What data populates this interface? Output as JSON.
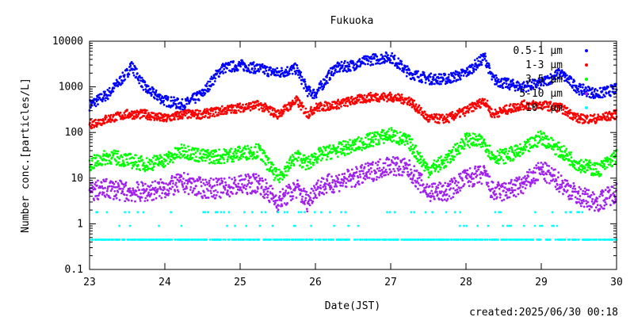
{
  "chart_data": {
    "type": "scatter",
    "title": "Fukuoka",
    "xlabel": "Date(JST)",
    "ylabel": "Number conc.[particles/L]",
    "x_tick_labels": [
      "23",
      "24",
      "25",
      "26",
      "27",
      "28",
      "29",
      "30"
    ],
    "xlim": [
      23,
      30
    ],
    "y_scale": "log",
    "ylim": [
      0.1,
      10000
    ],
    "y_tick_labels": [
      "0.1",
      "1",
      "10",
      "100",
      "1000",
      "10000"
    ],
    "grid": false,
    "legend_position": "top-right",
    "footer": "created:2025/06/30 00:18",
    "series": [
      {
        "name": "0.5-1 μm",
        "color": "#0000ff",
        "x": [
          23.0,
          23.25,
          23.5,
          23.55,
          23.75,
          24.0,
          24.25,
          24.5,
          24.75,
          25.0,
          25.25,
          25.5,
          25.75,
          25.9,
          26.0,
          26.25,
          26.5,
          26.75,
          27.0,
          27.25,
          27.5,
          27.75,
          28.0,
          28.25,
          28.35,
          28.5,
          28.75,
          29.0,
          29.25,
          29.5,
          29.75,
          30.0
        ],
        "y": [
          400,
          700,
          2000,
          3000,
          900,
          500,
          400,
          700,
          2500,
          3000,
          2500,
          2000,
          2500,
          800,
          700,
          2500,
          3000,
          4000,
          4500,
          2000,
          1500,
          1500,
          2000,
          4500,
          1500,
          1200,
          1000,
          1200,
          2000,
          900,
          700,
          900
        ]
      },
      {
        "name": "1-3 μm",
        "color": "#ff0000",
        "x": [
          23.0,
          23.25,
          23.5,
          23.75,
          24.0,
          24.25,
          24.5,
          24.75,
          25.0,
          25.25,
          25.5,
          25.75,
          25.9,
          26.0,
          26.25,
          26.5,
          26.75,
          27.0,
          27.25,
          27.5,
          27.75,
          28.0,
          28.25,
          28.35,
          28.5,
          28.75,
          29.0,
          29.25,
          29.5,
          29.75,
          30.0
        ],
        "y": [
          150,
          200,
          250,
          250,
          200,
          250,
          250,
          300,
          350,
          400,
          250,
          500,
          250,
          350,
          400,
          500,
          600,
          600,
          500,
          200,
          200,
          300,
          500,
          250,
          300,
          400,
          400,
          350,
          200,
          200,
          250
        ]
      },
      {
        "name": "3-5 μm",
        "color": "#00ff00",
        "x": [
          23.0,
          23.25,
          23.5,
          23.75,
          24.0,
          24.25,
          24.5,
          24.75,
          25.0,
          25.25,
          25.5,
          25.75,
          25.9,
          26.0,
          26.25,
          26.5,
          26.75,
          27.0,
          27.25,
          27.5,
          27.75,
          28.0,
          28.25,
          28.35,
          28.5,
          28.75,
          29.0,
          29.25,
          29.5,
          29.75,
          30.0
        ],
        "y": [
          20,
          30,
          25,
          20,
          25,
          40,
          30,
          30,
          35,
          40,
          10,
          30,
          20,
          30,
          40,
          50,
          70,
          90,
          60,
          15,
          25,
          70,
          60,
          30,
          30,
          40,
          80,
          40,
          20,
          15,
          30
        ]
      },
      {
        "name": "5-10 μm",
        "color": "#a020f0",
        "x": [
          23.0,
          23.25,
          23.5,
          23.75,
          24.0,
          24.25,
          24.5,
          24.75,
          25.0,
          25.25,
          25.5,
          25.75,
          25.9,
          26.0,
          26.25,
          26.5,
          26.75,
          27.0,
          27.25,
          27.5,
          27.75,
          28.0,
          28.25,
          28.35,
          28.5,
          28.75,
          29.0,
          29.25,
          29.5,
          29.75,
          30.0
        ],
        "y": [
          5,
          6,
          5,
          5,
          6,
          8,
          6,
          6,
          7,
          8,
          3,
          6,
          3,
          6,
          8,
          10,
          14,
          20,
          15,
          5,
          5,
          10,
          12,
          5,
          5,
          7,
          15,
          8,
          4,
          3,
          5
        ]
      },
      {
        "name": "10- μm",
        "color": "#00ffff",
        "x": [
          23.0,
          23.5,
          24.0,
          24.5,
          25.0,
          25.5,
          26.0,
          26.5,
          27.0,
          27.5,
          28.0,
          28.5,
          29.0,
          29.5,
          30.0
        ],
        "y": [
          0.45,
          0.45,
          0.45,
          0.45,
          0.45,
          0.45,
          0.45,
          0.45,
          0.45,
          0.45,
          0.45,
          0.45,
          0.45,
          0.45,
          0.45
        ]
      }
    ]
  }
}
